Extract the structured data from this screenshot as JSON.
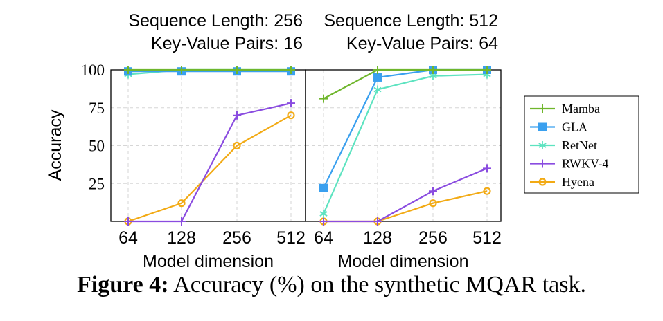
{
  "figure": {
    "caption_label": "Figure 4:",
    "caption_text": "Accuracy (%) on the synthetic MQAR task."
  },
  "chart_data": {
    "type": "line",
    "ylabel": "Accuracy",
    "ylim": [
      0,
      100
    ],
    "yticks": [
      25,
      50,
      75,
      100
    ],
    "categories": [
      "64",
      "128",
      "256",
      "512"
    ],
    "grid": true,
    "legend_placement": "right",
    "legend": [
      {
        "name": "Mamba",
        "color": "#6fb62c",
        "marker": "plus"
      },
      {
        "name": "GLA",
        "color": "#3aa0ef",
        "marker": "square"
      },
      {
        "name": "RetNet",
        "color": "#5de3c0",
        "marker": "star"
      },
      {
        "name": "RWKV-4",
        "color": "#8a4ce0",
        "marker": "plus"
      },
      {
        "name": "Hyena",
        "color": "#f2aa14",
        "marker": "circle"
      }
    ],
    "panels": [
      {
        "title_line1": "Sequence Length: 256",
        "title_line2": "Key-Value Pairs: 16",
        "xlabel": "Model dimension",
        "series": [
          {
            "name": "Mamba",
            "values": [
              100,
              100,
              100,
              100
            ]
          },
          {
            "name": "GLA",
            "values": [
              99,
              99,
              99,
              99
            ]
          },
          {
            "name": "RetNet",
            "values": [
              97,
              100,
              100,
              100
            ]
          },
          {
            "name": "RWKV-4",
            "values": [
              0,
              0,
              70,
              78
            ]
          },
          {
            "name": "Hyena",
            "values": [
              0,
              12,
              50,
              70
            ]
          }
        ]
      },
      {
        "title_line1": "Sequence Length: 512",
        "title_line2": "Key-Value Pairs: 64",
        "xlabel": "Model dimension",
        "series": [
          {
            "name": "Mamba",
            "values": [
              81,
              100,
              100,
              100
            ]
          },
          {
            "name": "GLA",
            "values": [
              22,
              95,
              100,
              100
            ]
          },
          {
            "name": "RetNet",
            "values": [
              5,
              87,
              96,
              97
            ]
          },
          {
            "name": "RWKV-4",
            "values": [
              0,
              0,
              20,
              35
            ]
          },
          {
            "name": "Hyena",
            "values": [
              0,
              0,
              12,
              20
            ]
          }
        ]
      }
    ]
  }
}
